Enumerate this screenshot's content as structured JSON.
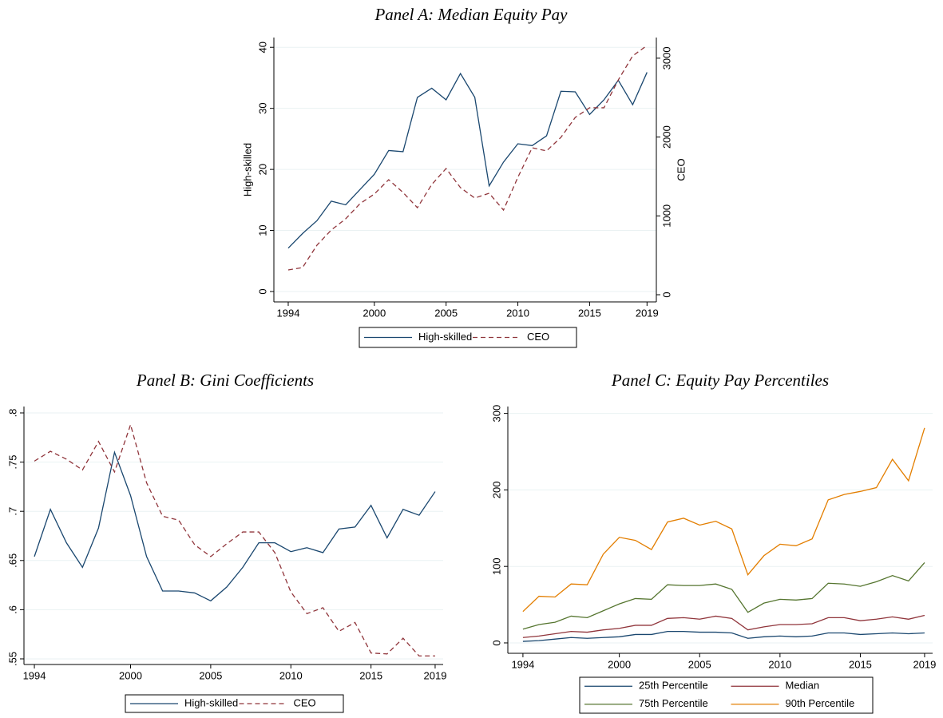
{
  "chart_data": [
    {
      "type": "line",
      "title": "Panel A: Median Equity Pay",
      "ylabel": "High-skilled",
      "y2label": "CEO",
      "x": [
        1994,
        1995,
        1996,
        1997,
        1998,
        1999,
        2000,
        2001,
        2002,
        2003,
        2004,
        2005,
        2006,
        2007,
        2008,
        2009,
        2010,
        2011,
        2012,
        2013,
        2014,
        2015,
        2016,
        2017,
        2018,
        2019
      ],
      "xlim": [
        1993.0,
        2019.65
      ],
      "xticks": [
        1994,
        2000,
        2005,
        2010,
        2015,
        2019
      ],
      "ylim": [
        -1.7,
        41.6
      ],
      "yticks": [
        0,
        10,
        20,
        30,
        40
      ],
      "y2lim": [
        -91,
        3262
      ],
      "y2ticks": [
        0,
        1000,
        2000,
        3000
      ],
      "grid": true,
      "legend": "bottom",
      "legend_columns": 2,
      "series": [
        {
          "name": "High-skilled",
          "color": "#1a476f",
          "linestyle": "solid",
          "values": [
            7.1,
            9.5,
            11.6,
            14.8,
            14.2,
            16.7,
            19.2,
            23.1,
            22.9,
            31.8,
            33.3,
            31.4,
            35.7,
            31.8,
            17.3,
            21.2,
            24.2,
            23.9,
            25.5,
            32.8,
            32.7,
            29.0,
            31.4,
            34.6,
            30.6,
            35.9
          ]
        },
        {
          "name": "CEO",
          "color": "#90353b",
          "linestyle": "dashed",
          "axis": "y2",
          "values": [
            314,
            345,
            628,
            821,
            962,
            1155,
            1277,
            1459,
            1297,
            1104,
            1398,
            1601,
            1358,
            1226,
            1287,
            1074,
            1489,
            1864,
            1824,
            1996,
            2249,
            2371,
            2371,
            2725,
            3029,
            3161
          ]
        }
      ]
    },
    {
      "type": "line",
      "title": "Panel B: Gini Coefficients",
      "x": [
        1994,
        1995,
        1996,
        1997,
        1998,
        1999,
        2000,
        2001,
        2002,
        2003,
        2004,
        2005,
        2006,
        2007,
        2008,
        2009,
        2010,
        2011,
        2012,
        2013,
        2014,
        2015,
        2016,
        2017,
        2018,
        2019
      ],
      "xlim": [
        1993.35,
        2019.5
      ],
      "xticks": [
        1994,
        2000,
        2005,
        2010,
        2015,
        2019
      ],
      "ylim": [
        0.5443,
        0.8065
      ],
      "yticks": [
        {
          "value": 0.55,
          "label": ".55"
        },
        {
          "value": 0.6,
          "label": ".6"
        },
        {
          "value": 0.65,
          "label": ".65"
        },
        {
          "value": 0.7,
          "label": ".7"
        },
        {
          "value": 0.75,
          "label": ".75"
        },
        {
          "value": 0.8,
          "label": ".8"
        }
      ],
      "grid": true,
      "legend": "bottom",
      "legend_columns": 2,
      "series": [
        {
          "name": "High-skilled",
          "color": "#1a476f",
          "linestyle": "solid",
          "values": [
            0.654,
            0.702,
            0.668,
            0.643,
            0.683,
            0.76,
            0.716,
            0.654,
            0.619,
            0.619,
            0.617,
            0.609,
            0.623,
            0.643,
            0.668,
            0.668,
            0.659,
            0.663,
            0.658,
            0.682,
            0.684,
            0.706,
            0.673,
            0.702,
            0.696,
            0.72
          ]
        },
        {
          "name": "CEO",
          "color": "#90353b",
          "linestyle": "dashed",
          "values": [
            0.751,
            0.761,
            0.753,
            0.742,
            0.771,
            0.74,
            0.788,
            0.729,
            0.695,
            0.691,
            0.666,
            0.654,
            0.667,
            0.679,
            0.679,
            0.658,
            0.618,
            0.596,
            0.602,
            0.578,
            0.587,
            0.556,
            0.555,
            0.571,
            0.553,
            0.553
          ]
        }
      ]
    },
    {
      "type": "line",
      "title": "Panel C: Equity Pay Percentiles",
      "x": [
        1994,
        1995,
        1996,
        1997,
        1998,
        1999,
        2000,
        2001,
        2002,
        2003,
        2004,
        2005,
        2006,
        2007,
        2008,
        2009,
        2010,
        2011,
        2012,
        2013,
        2014,
        2015,
        2016,
        2017,
        2018,
        2019
      ],
      "xlim": [
        1993.06,
        2019.5
      ],
      "xticks": [
        1994,
        2000,
        2005,
        2010,
        2015,
        2019
      ],
      "ylim": [
        -13.6,
        309
      ],
      "yticks": [
        0,
        100,
        200,
        300
      ],
      "grid": true,
      "legend": "bottom",
      "legend_columns": 2,
      "series": [
        {
          "name": "25th Percentile",
          "color": "#1a476f",
          "linestyle": "solid",
          "values": [
            2,
            3,
            5,
            7,
            6,
            7,
            8,
            11,
            11,
            15,
            15,
            14,
            14,
            13,
            6,
            8,
            9,
            8,
            9,
            13,
            13,
            11,
            12,
            13,
            12,
            13
          ]
        },
        {
          "name": "Median",
          "color": "#90353b",
          "linestyle": "solid",
          "values": [
            7,
            9,
            12,
            15,
            14,
            17,
            19,
            23,
            23,
            32,
            33,
            31,
            35,
            32,
            17,
            21,
            24,
            24,
            25,
            33,
            33,
            29,
            31,
            34,
            31,
            36
          ]
        },
        {
          "name": "75th Percentile",
          "color": "#55752f",
          "linestyle": "solid",
          "values": [
            18,
            24,
            27,
            35,
            33,
            42,
            51,
            58,
            57,
            76,
            75,
            75,
            77,
            70,
            40,
            52,
            57,
            56,
            58,
            78,
            77,
            74,
            80,
            88,
            81,
            105
          ]
        },
        {
          "name": "90th Percentile",
          "color": "#e37e00",
          "linestyle": "solid",
          "values": [
            41,
            61,
            60,
            77,
            76,
            116,
            138,
            134,
            122,
            158,
            163,
            154,
            159,
            149,
            89,
            114,
            129,
            127,
            136,
            187,
            194,
            198,
            203,
            240,
            212,
            281
          ]
        }
      ]
    }
  ]
}
